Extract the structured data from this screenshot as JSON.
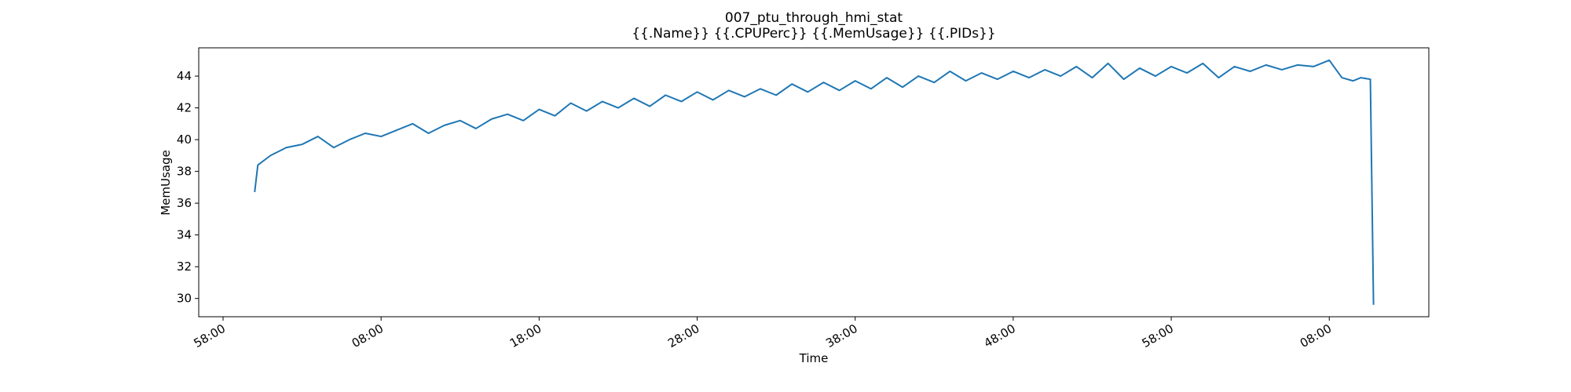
{
  "chart_data": {
    "type": "line",
    "title": "007_ptu_through_hmi_stat",
    "subtitle": "{{.Name}} {{.CPUPerc}} {{.MemUsage}}  {{.PIDs}}",
    "x_label": "Time",
    "y_label": "MemUsage",
    "x": [
      2,
      2.2,
      3,
      4,
      5,
      6,
      7,
      8,
      9,
      10,
      11,
      12,
      13,
      14,
      15,
      16,
      17,
      18,
      19,
      20,
      21,
      22,
      23,
      24,
      25,
      26,
      27,
      28,
      29,
      30,
      31,
      32,
      33,
      34,
      35,
      36,
      37,
      38,
      39,
      40,
      41,
      42,
      43,
      44,
      45,
      46,
      47,
      48,
      49,
      50,
      51,
      52,
      53,
      54,
      55,
      56,
      57,
      58,
      59,
      60,
      61,
      62,
      63,
      64,
      65,
      66,
      67,
      68,
      69,
      70,
      70.8,
      71.5,
      72,
      72.6,
      72.8
    ],
    "series": [
      {
        "name": "MemUsage",
        "color": "#1f77b4",
        "values": [
          36.7,
          38.4,
          39.0,
          39.5,
          39.7,
          40.2,
          39.5,
          40.0,
          40.4,
          40.2,
          40.6,
          41.0,
          40.4,
          40.9,
          41.2,
          40.7,
          41.3,
          41.6,
          41.2,
          41.9,
          41.5,
          42.3,
          41.8,
          42.4,
          42.0,
          42.6,
          42.1,
          42.8,
          42.4,
          43.0,
          42.5,
          43.1,
          42.7,
          43.2,
          42.8,
          43.5,
          43.0,
          43.6,
          43.1,
          43.7,
          43.2,
          43.9,
          43.3,
          44.0,
          43.6,
          44.3,
          43.7,
          44.2,
          43.8,
          44.3,
          43.9,
          44.4,
          44.0,
          44.6,
          43.9,
          44.8,
          43.8,
          44.5,
          44.0,
          44.6,
          44.2,
          44.8,
          43.9,
          44.6,
          44.3,
          44.7,
          44.4,
          44.7,
          44.6,
          45.0,
          43.9,
          43.7,
          43.9,
          43.8,
          29.6
        ]
      }
    ],
    "xlim": [
      -1.54,
      76.3
    ],
    "xticks": [
      {
        "value": 0,
        "label": "58:00"
      },
      {
        "value": 10,
        "label": "08:00"
      },
      {
        "value": 20,
        "label": "18:00"
      },
      {
        "value": 30,
        "label": "28:00"
      },
      {
        "value": 40,
        "label": "38:00"
      },
      {
        "value": 50,
        "label": "48:00"
      },
      {
        "value": 60,
        "label": "58:00"
      },
      {
        "value": 70,
        "label": "08:00"
      }
    ],
    "ylim": [
      28.85,
      45.78
    ],
    "yticks": [
      30,
      32,
      34,
      36,
      38,
      40,
      42,
      44
    ],
    "grid": false
  }
}
